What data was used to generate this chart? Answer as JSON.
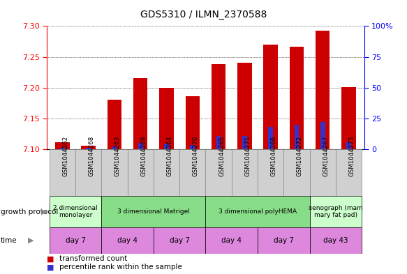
{
  "title": "GDS5310 / ILMN_2370588",
  "samples": [
    "GSM1044262",
    "GSM1044268",
    "GSM1044263",
    "GSM1044269",
    "GSM1044264",
    "GSM1044270",
    "GSM1044265",
    "GSM1044271",
    "GSM1044266",
    "GSM1044272",
    "GSM1044267",
    "GSM1044273"
  ],
  "transformed_counts": [
    7.112,
    7.106,
    7.181,
    7.216,
    7.2,
    7.186,
    7.238,
    7.241,
    7.27,
    7.266,
    7.292,
    7.201
  ],
  "percentile_ranks": [
    1.5,
    1.5,
    2.5,
    5.0,
    4.5,
    3.5,
    11.0,
    11.0,
    18.0,
    20.0,
    22.0,
    5.5
  ],
  "y_min": 7.1,
  "y_max": 7.3,
  "y_ticks": [
    7.1,
    7.15,
    7.2,
    7.25,
    7.3
  ],
  "right_y_ticks": [
    0,
    25,
    50,
    75,
    100
  ],
  "bar_color": "#cc0000",
  "blue_color": "#3333cc",
  "sample_bg_color": "#d0d0d0",
  "growth_protocol_groups": [
    {
      "label": "2 dimensional\nmonolayer",
      "start": 0,
      "end": 2,
      "color": "#ccffcc"
    },
    {
      "label": "3 dimensional Matrigel",
      "start": 2,
      "end": 6,
      "color": "#88dd88"
    },
    {
      "label": "3 dimensional polyHEMA",
      "start": 6,
      "end": 10,
      "color": "#88dd88"
    },
    {
      "label": "xenograph (mam\nmary fat pad)",
      "start": 10,
      "end": 12,
      "color": "#ccffcc"
    }
  ],
  "time_groups": [
    {
      "label": "day 7",
      "start": 0,
      "end": 2,
      "color": "#dd88dd"
    },
    {
      "label": "day 4",
      "start": 2,
      "end": 4,
      "color": "#dd88dd"
    },
    {
      "label": "day 7",
      "start": 4,
      "end": 6,
      "color": "#dd88dd"
    },
    {
      "label": "day 4",
      "start": 6,
      "end": 8,
      "color": "#dd88dd"
    },
    {
      "label": "day 7",
      "start": 8,
      "end": 10,
      "color": "#dd88dd"
    },
    {
      "label": "day 43",
      "start": 10,
      "end": 12,
      "color": "#dd88dd"
    }
  ],
  "legend_items": [
    {
      "label": "transformed count",
      "color": "#cc0000"
    },
    {
      "label": "percentile rank within the sample",
      "color": "#3333cc"
    }
  ],
  "bar_width": 0.55,
  "blue_bar_width": 0.18
}
